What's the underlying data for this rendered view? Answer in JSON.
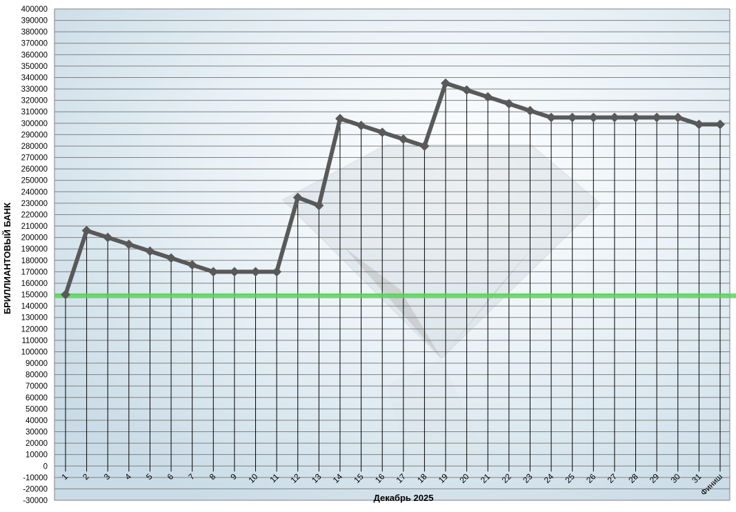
{
  "chart_data": {
    "type": "line",
    "title": "",
    "xlabel": "Декабрь 2025",
    "ylabel": "БРИЛЛИАНТОВЫЙ БАНК",
    "ylim": [
      -30000,
      400000
    ],
    "ytick_step": 10000,
    "grid": true,
    "legend": "none",
    "categories": [
      "1",
      "2",
      "3",
      "4",
      "5",
      "6",
      "7",
      "8",
      "9",
      "10",
      "11",
      "12",
      "13",
      "14",
      "15",
      "16",
      "17",
      "18",
      "19",
      "20",
      "21",
      "22",
      "23",
      "24",
      "25",
      "26",
      "27",
      "28",
      "29",
      "30",
      "31",
      "Финиш"
    ],
    "series": [
      {
        "values": [
          150000,
          206000,
          200000,
          194000,
          188000,
          182000,
          176000,
          170000,
          170000,
          170000,
          170000,
          235000,
          228000,
          304000,
          298000,
          292000,
          286000,
          280000,
          335000,
          329000,
          323000,
          317000,
          311000,
          305000,
          305000,
          305000,
          305000,
          305000,
          305000,
          305000,
          299000,
          299000
        ],
        "color": "#595959"
      }
    ],
    "reference_line": {
      "value": 149000,
      "color": "#5ed45e"
    }
  }
}
